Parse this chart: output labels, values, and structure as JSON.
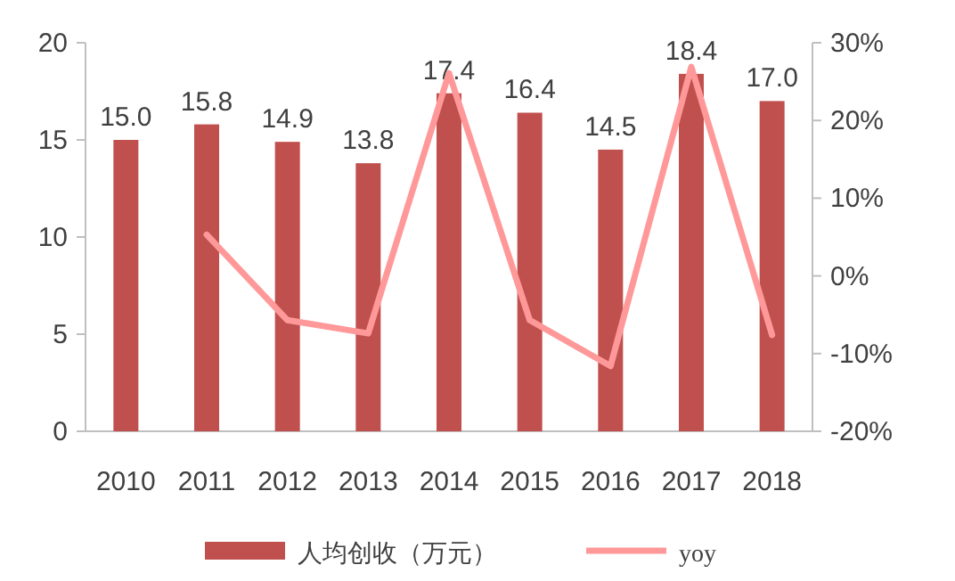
{
  "chart_data": {
    "type": "bar",
    "categories": [
      "2010",
      "2011",
      "2012",
      "2013",
      "2014",
      "2015",
      "2016",
      "2017",
      "2018"
    ],
    "series": [
      {
        "name": "人均创收（万元）",
        "color": "#c0504d",
        "values": [
          15.0,
          15.8,
          14.9,
          13.8,
          17.4,
          16.4,
          14.5,
          18.4,
          17.0
        ],
        "value_labels": [
          "15.0",
          "15.8",
          "14.9",
          "13.8",
          "17.4",
          "16.4",
          "14.5",
          "18.4",
          "17.0"
        ]
      },
      {
        "name": "yoy",
        "type": "line",
        "axis": "y2",
        "color": "#ff9999",
        "values": [
          null,
          5.3,
          -5.7,
          -7.4,
          26.1,
          -5.7,
          -11.6,
          26.9,
          -7.6
        ]
      }
    ],
    "ylim": [
      0,
      20
    ],
    "yticks": [
      0,
      5,
      10,
      15,
      20
    ],
    "y2lim": [
      -20,
      30
    ],
    "y2ticks": [
      {
        "value": -20,
        "label": "-20%"
      },
      {
        "value": -10,
        "label": "-10%"
      },
      {
        "value": 0,
        "label": "0%"
      },
      {
        "value": 10,
        "label": "10%"
      },
      {
        "value": 20,
        "label": "20%"
      },
      {
        "value": 30,
        "label": "30%"
      }
    ],
    "legend": "bottom"
  }
}
